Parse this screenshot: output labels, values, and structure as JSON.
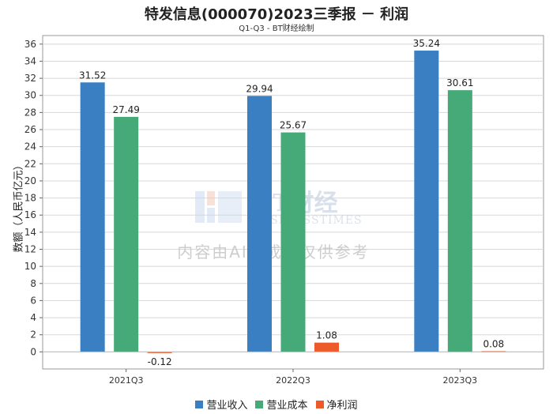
{
  "chart_data": {
    "type": "bar",
    "title": "特发信息(000070)2023三季报 － 利润",
    "subtitle": "Q1-Q3 - BT财经绘制",
    "ylabel": "数额（人民币亿元）",
    "xlabel": "",
    "categories": [
      "2021Q3",
      "2022Q3",
      "2023Q3"
    ],
    "ylim": [
      -2,
      37
    ],
    "yticks": [
      0,
      2,
      4,
      6,
      8,
      10,
      12,
      14,
      16,
      18,
      20,
      22,
      24,
      26,
      28,
      30,
      32,
      34,
      36
    ],
    "grid": true,
    "legend_position": "bottom",
    "series": [
      {
        "name": "营业收入",
        "color": "#3a7fc1",
        "values": [
          31.52,
          29.94,
          35.24
        ]
      },
      {
        "name": "营业成本",
        "color": "#45a978",
        "values": [
          27.49,
          25.67,
          30.61
        ]
      },
      {
        "name": "净利润",
        "color": "#ee5a2a",
        "values": [
          -0.12,
          1.08,
          0.08
        ]
      }
    ],
    "watermark": {
      "brand": "BT财经",
      "brand_en": "BUSINESSTIMES",
      "notice": "内容由AI生成，仅供参考"
    }
  }
}
